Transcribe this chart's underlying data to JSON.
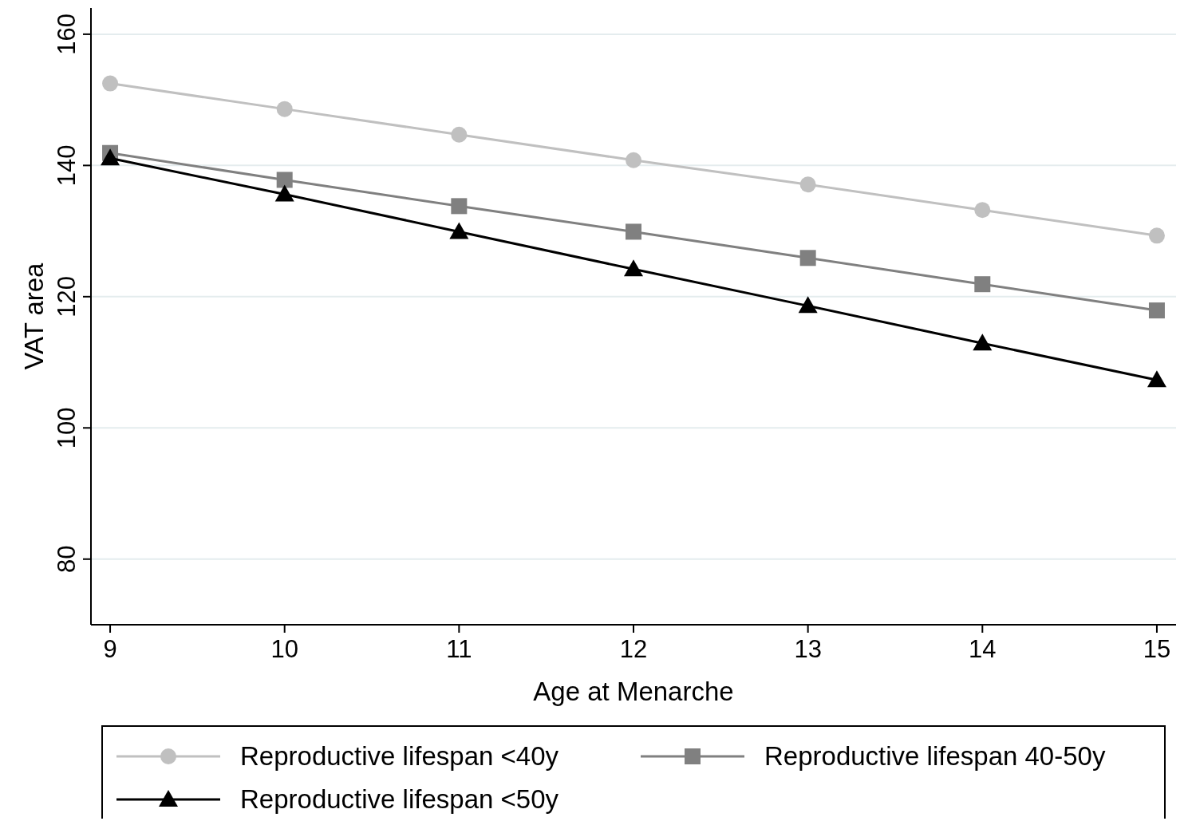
{
  "chart_data": {
    "type": "line",
    "xlabel": "Age at Menarche",
    "ylabel": "VAT area",
    "x": [
      9,
      10,
      11,
      12,
      13,
      14,
      15
    ],
    "xlim": [
      8.89,
      15.11
    ],
    "xticks": [
      9,
      10,
      11,
      12,
      13,
      14,
      15
    ],
    "ylim": [
      70,
      164
    ],
    "yticks": [
      80,
      100,
      120,
      140,
      160
    ],
    "grid": "y",
    "legend": "bottom",
    "series": [
      {
        "name": "Reproductive lifespan <40y",
        "color": "#c0c0c0",
        "marker": "circle",
        "values": [
          152.5,
          148.6,
          144.7,
          140.8,
          137.1,
          133.2,
          129.3
        ]
      },
      {
        "name": "Reproductive lifespan 40-50y",
        "color": "#808080",
        "marker": "square",
        "values": [
          141.9,
          137.8,
          133.8,
          129.9,
          125.9,
          121.9,
          117.9
        ]
      },
      {
        "name": "Reproductive lifespan <50y",
        "color": "#000000",
        "marker": "triangle",
        "values": [
          141.1,
          135.6,
          129.9,
          124.2,
          118.6,
          112.9,
          107.3
        ]
      }
    ]
  }
}
